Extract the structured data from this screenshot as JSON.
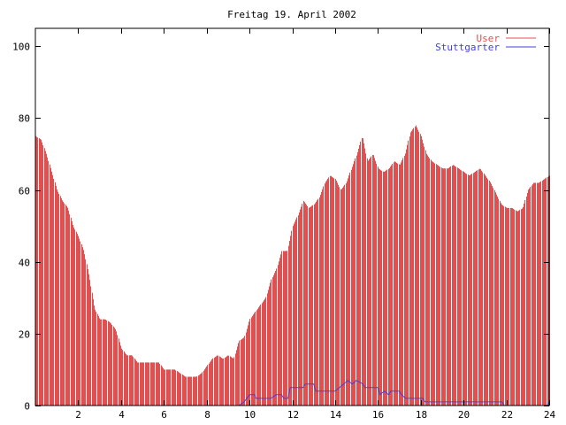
{
  "chart_data": {
    "type": "bar",
    "title": "Freitag 19. April 2002",
    "xlabel": "",
    "ylabel": "",
    "xlim": [
      0,
      24
    ],
    "ylim": [
      0,
      105
    ],
    "x_ticks": [
      2,
      4,
      6,
      8,
      10,
      12,
      14,
      16,
      18,
      20,
      22,
      24
    ],
    "y_ticks": [
      0,
      20,
      40,
      60,
      80,
      100
    ],
    "grid": false,
    "legend": "top-right",
    "series": [
      {
        "name": "User",
        "style": "impulses",
        "color": "#e05050",
        "points": [
          [
            0.0,
            75
          ],
          [
            0.25,
            74
          ],
          [
            0.5,
            70
          ],
          [
            0.75,
            65
          ],
          [
            1.0,
            60
          ],
          [
            1.25,
            57
          ],
          [
            1.5,
            55
          ],
          [
            1.75,
            50
          ],
          [
            2.0,
            47
          ],
          [
            2.25,
            43
          ],
          [
            2.5,
            36
          ],
          [
            2.75,
            27
          ],
          [
            3.0,
            24
          ],
          [
            3.25,
            24
          ],
          [
            3.5,
            23
          ],
          [
            3.75,
            21
          ],
          [
            4.0,
            16
          ],
          [
            4.25,
            14
          ],
          [
            4.5,
            14
          ],
          [
            4.75,
            12
          ],
          [
            5.0,
            12
          ],
          [
            5.25,
            12
          ],
          [
            5.5,
            12
          ],
          [
            5.75,
            12
          ],
          [
            6.0,
            10
          ],
          [
            6.25,
            10
          ],
          [
            6.5,
            10
          ],
          [
            6.75,
            9
          ],
          [
            7.0,
            8
          ],
          [
            7.25,
            8
          ],
          [
            7.5,
            8
          ],
          [
            7.75,
            9
          ],
          [
            8.0,
            11
          ],
          [
            8.25,
            13
          ],
          [
            8.5,
            14
          ],
          [
            8.75,
            13
          ],
          [
            9.0,
            14
          ],
          [
            9.25,
            13
          ],
          [
            9.5,
            18
          ],
          [
            9.75,
            19
          ],
          [
            10.0,
            24
          ],
          [
            10.25,
            26
          ],
          [
            10.5,
            28
          ],
          [
            10.75,
            30
          ],
          [
            11.0,
            35
          ],
          [
            11.25,
            38
          ],
          [
            11.5,
            43
          ],
          [
            11.75,
            43
          ],
          [
            12.0,
            50
          ],
          [
            12.25,
            53
          ],
          [
            12.5,
            57
          ],
          [
            12.75,
            55
          ],
          [
            13.0,
            56
          ],
          [
            13.25,
            58
          ],
          [
            13.5,
            62
          ],
          [
            13.75,
            64
          ],
          [
            14.0,
            63
          ],
          [
            14.25,
            60
          ],
          [
            14.5,
            62
          ],
          [
            14.75,
            66
          ],
          [
            15.0,
            70
          ],
          [
            15.25,
            75
          ],
          [
            15.5,
            68
          ],
          [
            15.75,
            70
          ],
          [
            16.0,
            66
          ],
          [
            16.25,
            65
          ],
          [
            16.5,
            66
          ],
          [
            16.75,
            68
          ],
          [
            17.0,
            67
          ],
          [
            17.25,
            70
          ],
          [
            17.5,
            76
          ],
          [
            17.75,
            78
          ],
          [
            18.0,
            75
          ],
          [
            18.25,
            70
          ],
          [
            18.5,
            68
          ],
          [
            18.75,
            67
          ],
          [
            19.0,
            66
          ],
          [
            19.25,
            66
          ],
          [
            19.5,
            67
          ],
          [
            19.75,
            66
          ],
          [
            20.0,
            65
          ],
          [
            20.25,
            64
          ],
          [
            20.5,
            65
          ],
          [
            20.75,
            66
          ],
          [
            21.0,
            64
          ],
          [
            21.25,
            62
          ],
          [
            21.5,
            59
          ],
          [
            21.75,
            56
          ],
          [
            22.0,
            55
          ],
          [
            22.25,
            55
          ],
          [
            22.5,
            54
          ],
          [
            22.75,
            55
          ],
          [
            23.0,
            60
          ],
          [
            23.25,
            62
          ],
          [
            23.5,
            62
          ],
          [
            23.75,
            63
          ],
          [
            24.0,
            64
          ]
        ]
      },
      {
        "name": "Stuttgarter",
        "style": "line",
        "color": "#4040e0",
        "points": [
          [
            0.0,
            0
          ],
          [
            9.5,
            0
          ],
          [
            9.75,
            1
          ],
          [
            10.0,
            3
          ],
          [
            10.25,
            3
          ],
          [
            10.3,
            2
          ],
          [
            11.0,
            2
          ],
          [
            11.25,
            3
          ],
          [
            11.5,
            3
          ],
          [
            11.6,
            2
          ],
          [
            11.8,
            2
          ],
          [
            11.9,
            5
          ],
          [
            12.5,
            5
          ],
          [
            12.6,
            6
          ],
          [
            13.0,
            6
          ],
          [
            13.1,
            4
          ],
          [
            14.0,
            4
          ],
          [
            14.2,
            5
          ],
          [
            14.4,
            6
          ],
          [
            14.6,
            7
          ],
          [
            14.8,
            6
          ],
          [
            15.0,
            7
          ],
          [
            15.3,
            6
          ],
          [
            15.4,
            5
          ],
          [
            16.0,
            5
          ],
          [
            16.1,
            3
          ],
          [
            16.3,
            4
          ],
          [
            16.5,
            3
          ],
          [
            16.6,
            4
          ],
          [
            17.0,
            4
          ],
          [
            17.1,
            3
          ],
          [
            17.3,
            2
          ],
          [
            18.1,
            2
          ],
          [
            18.2,
            1
          ],
          [
            21.8,
            1
          ],
          [
            21.9,
            0
          ],
          [
            23.9,
            0
          ],
          [
            24.0,
            1
          ]
        ]
      }
    ]
  }
}
